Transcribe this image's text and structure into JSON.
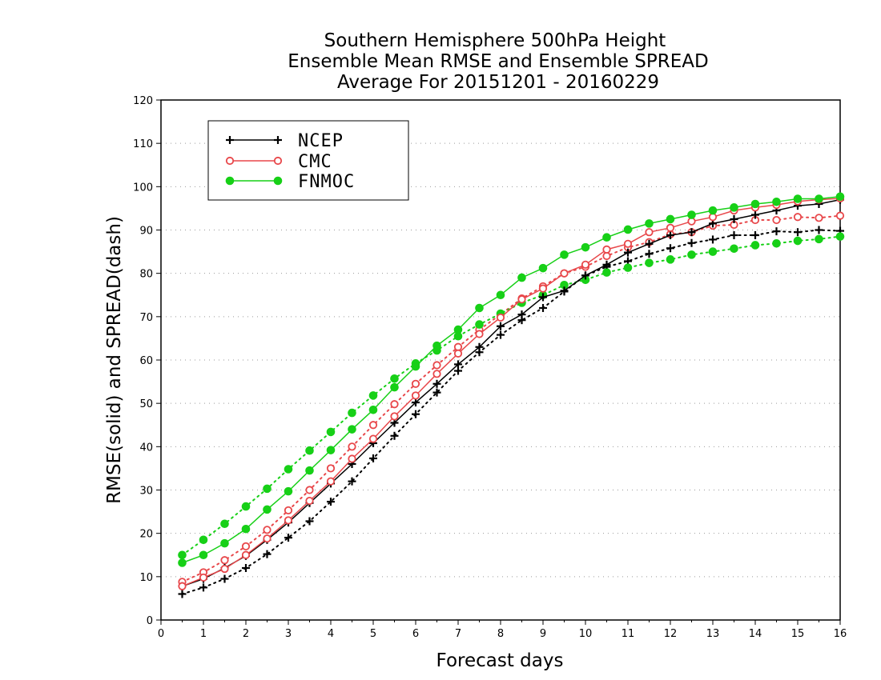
{
  "chart_data": {
    "type": "line",
    "title": [
      "Southern Hemisphere 500hPa Height",
      "Ensemble Mean RMSE and Ensemble SPREAD",
      "Average For 20151201 - 20160229"
    ],
    "xlabel": "Forecast days",
    "ylabel": "RMSE(solid) and SPREAD(dash)",
    "xlim": [
      0,
      16
    ],
    "ylim": [
      0,
      120
    ],
    "xticks": [
      0,
      1,
      2,
      3,
      4,
      5,
      6,
      7,
      8,
      9,
      10,
      11,
      12,
      13,
      14,
      15,
      16
    ],
    "yticks": [
      0,
      10,
      20,
      30,
      40,
      50,
      60,
      70,
      80,
      90,
      100,
      110,
      120
    ],
    "grid": "horizontal dotted",
    "legend_position": "top-left",
    "x": [
      0.5,
      1,
      1.5,
      2,
      2.5,
      3,
      3.5,
      4,
      4.5,
      5,
      5.5,
      6,
      6.5,
      7,
      7.5,
      8,
      8.5,
      9,
      9.5,
      10,
      10.5,
      11,
      11.5,
      12,
      12.5,
      13,
      13.5,
      14,
      14.5,
      15,
      15.5,
      16
    ],
    "series": [
      {
        "name": "NCEP",
        "kind": "rmse",
        "style": "solid",
        "color": "#000000",
        "marker": "plus",
        "values": [
          7.8,
          9.5,
          12,
          14.8,
          18.5,
          22.5,
          27,
          31.5,
          36,
          40.8,
          45.5,
          50.2,
          54.5,
          59,
          63,
          67.8,
          70.5,
          74.5,
          76,
          79.5,
          82,
          84.8,
          86.8,
          88.8,
          89.5,
          91.5,
          92.5,
          93.5,
          94.5,
          95.6,
          96,
          97
        ]
      },
      {
        "name": "NCEP",
        "kind": "spread",
        "style": "dash",
        "color": "#000000",
        "marker": "plus",
        "values": [
          6,
          7.5,
          9.5,
          12,
          15.2,
          19,
          22.8,
          27.3,
          32,
          37.3,
          42.5,
          47.5,
          52.5,
          57.5,
          61.8,
          65.8,
          69.2,
          72,
          75.8,
          79.5,
          81.5,
          82.8,
          84.5,
          85.8,
          87,
          87.8,
          88.8,
          88.8,
          89.7,
          89.5,
          90,
          89.8
        ]
      },
      {
        "name": "CMC",
        "kind": "rmse",
        "style": "solid",
        "color": "#e8474a",
        "marker": "circle",
        "values": [
          7.8,
          9.8,
          11.8,
          15,
          18.8,
          23,
          27.5,
          32,
          37.2,
          41.8,
          47,
          51.8,
          56.8,
          61.5,
          66,
          69.8,
          74,
          76.5,
          80,
          82,
          85.5,
          86.8,
          89.5,
          90.5,
          92,
          93,
          94.5,
          95.2,
          95.8,
          96.6,
          97,
          97.3
        ]
      },
      {
        "name": "CMC",
        "kind": "spread",
        "style": "dash",
        "color": "#e8474a",
        "marker": "circle",
        "values": [
          8.8,
          11,
          13.8,
          17,
          20.8,
          25.3,
          30,
          35,
          40,
          45,
          49.8,
          54.5,
          58.8,
          63,
          67,
          70.5,
          74.2,
          77,
          80,
          81.5,
          84,
          86,
          87.2,
          89,
          89.5,
          91,
          91.2,
          92.3,
          92.3,
          93,
          92.8,
          93.3
        ]
      },
      {
        "name": "FNMOC",
        "kind": "rmse",
        "style": "solid",
        "color": "#17d017",
        "marker": "dot",
        "values": [
          13.2,
          15,
          17.7,
          21,
          25.5,
          29.7,
          34.5,
          39.2,
          44,
          48.5,
          53.7,
          58.5,
          63.3,
          67,
          72,
          75,
          79,
          81.2,
          84.3,
          86,
          88.3,
          90.1,
          91.5,
          92.5,
          93.5,
          94.5,
          95.2,
          96,
          96.5,
          97.2,
          97.2,
          97.7
        ]
      },
      {
        "name": "FNMOC",
        "kind": "spread",
        "style": "dash",
        "color": "#17d017",
        "marker": "dot",
        "values": [
          15,
          18.5,
          22.2,
          26.2,
          30.3,
          34.8,
          39.1,
          43.4,
          47.8,
          51.8,
          55.7,
          59.2,
          62.2,
          65.5,
          68.2,
          70.7,
          73.2,
          75,
          77.3,
          78.5,
          80.2,
          81.3,
          82.4,
          83.2,
          84.3,
          85,
          85.7,
          86.5,
          86.9,
          87.5,
          87.9,
          88.5
        ]
      }
    ],
    "legend": [
      {
        "label": "NCEP",
        "color": "#000000",
        "marker": "plus"
      },
      {
        "label": "CMC",
        "color": "#e8474a",
        "marker": "circle"
      },
      {
        "label": "FNMOC",
        "color": "#17d017",
        "marker": "dot"
      }
    ]
  }
}
